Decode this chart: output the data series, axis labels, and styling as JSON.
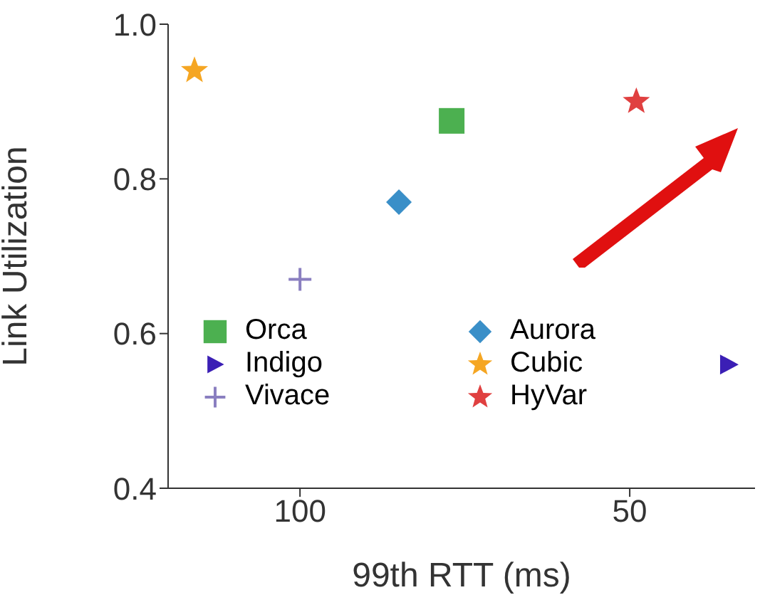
{
  "chart_data": {
    "type": "scatter",
    "xlabel": "99th  RTT (ms)",
    "ylabel": "Link Utilization",
    "xlim": [
      120,
      31
    ],
    "xticks": [
      100,
      50
    ],
    "ylim": [
      0.4,
      1.0
    ],
    "yticks": [
      0.4,
      0.6,
      0.8,
      {
        "value": 1.0,
        "label": "1.0"
      }
    ],
    "grid": false,
    "legend": "bottom left",
    "series": [
      {
        "name": "Orca",
        "color": "#4cb050",
        "marker": "square",
        "x": [
          77
        ],
        "values": [
          0.875
        ]
      },
      {
        "name": "Aurora",
        "color": "#3a8fc8",
        "marker": "diamond",
        "x": [
          85
        ],
        "values": [
          0.77
        ]
      },
      {
        "name": "Indigo",
        "color": "#3b1fb5",
        "marker": "triangle",
        "x": [
          35
        ],
        "values": [
          0.56
        ]
      },
      {
        "name": "Cubic",
        "color": "#f5a623",
        "marker": "star",
        "x": [
          116
        ],
        "values": [
          0.94
        ]
      },
      {
        "name": "Vivace",
        "color": "#8a7fc0",
        "marker": "cross",
        "x": [
          100
        ],
        "values": [
          0.67
        ]
      },
      {
        "name": "HyVar",
        "color": "#e04040",
        "marker": "star",
        "x": [
          49
        ],
        "values": [
          0.9
        ]
      }
    ]
  }
}
